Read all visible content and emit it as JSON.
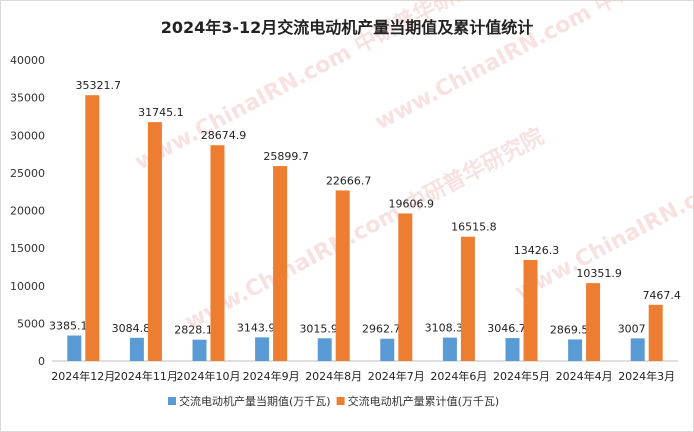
{
  "chart_data": {
    "type": "bar",
    "title": "2024年3-12月交流电动机产量当期值及累计值统计",
    "categories": [
      "2024年12月",
      "2024年11月",
      "2024年10月",
      "2024年9月",
      "2024年8月",
      "2024年7月",
      "2024年6月",
      "2024年5月",
      "2024年4月",
      "2024年3月"
    ],
    "series": [
      {
        "name": "交流电动机产量当期值(万千瓦)",
        "color": "#5b9bd5",
        "values": [
          3385.1,
          3084.8,
          2828.1,
          3143.9,
          3015.9,
          2962.7,
          3108.3,
          3046.7,
          2869.5,
          3007
        ],
        "labels": [
          "3385.1",
          "3084.8",
          "2828.1",
          "3143.9",
          "3015.9",
          "2962.7",
          "3108.3",
          "3046.7",
          "2869.5",
          "3007"
        ]
      },
      {
        "name": "交流电动机产量累计值(万千瓦)",
        "color": "#ed7d31",
        "values": [
          35321.7,
          31745.1,
          28674.9,
          25899.7,
          22666.7,
          19606.9,
          16515.8,
          13426.3,
          10351.9,
          7467.4
        ],
        "labels": [
          "35321.7",
          "31745.1",
          "28674.9",
          "25899.7",
          "22666.7",
          "19606.9",
          "16515.8",
          "13426.3",
          "10351.9",
          "7467.4"
        ]
      }
    ],
    "ylim": [
      0,
      40000
    ],
    "yticks": [
      0,
      5000,
      10000,
      15000,
      20000,
      25000,
      30000,
      35000,
      40000
    ],
    "ytick_labels": [
      "0",
      "5000",
      "10000",
      "15000",
      "20000",
      "25000",
      "30000",
      "35000",
      "40000"
    ],
    "legend_position": "bottom",
    "grid": false,
    "watermark": "www.ChinaIRN.com 中研普华研究院"
  }
}
